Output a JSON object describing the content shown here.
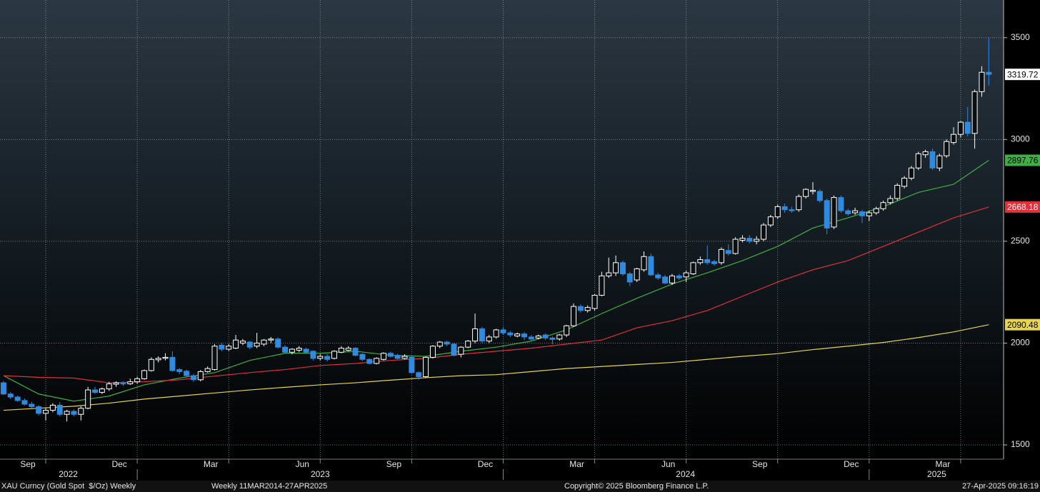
{
  "chart_data": {
    "type": "candlestick",
    "title": "XAU Curncy (Gold Spot  $/Oz) Weekly",
    "subtitle": "Weekly 11MAR2014-27APR2025",
    "copyright": "Copyright© 2025 Bloomberg Finance L.P.",
    "timestamp": "27-Apr-2025 09:16:19",
    "up_color": "#ffffff",
    "down_color": "#2f8ae0",
    "grid": true,
    "xlim": [
      -0.5,
      142.1
    ],
    "ylim": [
      1430,
      3685
    ],
    "yticks": [
      1500,
      2000,
      2500,
      3000,
      3500
    ],
    "xticks": [
      {
        "value": 6,
        "label": "Sep"
      },
      {
        "value": 19,
        "label": "Dec"
      },
      {
        "value": 32,
        "label": "Mar"
      },
      {
        "value": 45,
        "label": "Jun"
      },
      {
        "value": 58,
        "label": "Sep"
      },
      {
        "value": 71,
        "label": "Dec"
      },
      {
        "value": 84,
        "label": "Mar"
      },
      {
        "value": 97,
        "label": "Jun"
      },
      {
        "value": 110,
        "label": "Sep"
      },
      {
        "value": 123,
        "label": "Dec"
      },
      {
        "value": 136,
        "label": "Mar"
      }
    ],
    "year_labels": [
      {
        "value": 9.2,
        "label": "2022"
      },
      {
        "value": 45,
        "label": "2023"
      },
      {
        "value": 96.9,
        "label": "2024"
      },
      {
        "value": 132.6,
        "label": "2025"
      }
    ],
    "year_dividers": [
      19,
      71,
      123
    ],
    "ohlc": [
      [
        1805,
        1815,
        1745,
        1750
      ],
      [
        1750,
        1760,
        1725,
        1735
      ],
      [
        1735,
        1742,
        1712,
        1718
      ],
      [
        1718,
        1728,
        1695,
        1700
      ],
      [
        1700,
        1712,
        1680,
        1688
      ],
      [
        1688,
        1695,
        1645,
        1655
      ],
      [
        1655,
        1680,
        1620,
        1670
      ],
      [
        1670,
        1705,
        1660,
        1695
      ],
      [
        1695,
        1710,
        1640,
        1650
      ],
      [
        1650,
        1672,
        1615,
        1665
      ],
      [
        1665,
        1675,
        1640,
        1650
      ],
      [
        1650,
        1690,
        1620,
        1680
      ],
      [
        1680,
        1785,
        1675,
        1770
      ],
      [
        1770,
        1785,
        1750,
        1758
      ],
      [
        1758,
        1782,
        1750,
        1775
      ],
      [
        1775,
        1810,
        1765,
        1800
      ],
      [
        1798,
        1812,
        1785,
        1805
      ],
      [
        1803,
        1812,
        1790,
        1800
      ],
      [
        1800,
        1825,
        1795,
        1810
      ],
      [
        1810,
        1835,
        1800,
        1825
      ],
      [
        1825,
        1870,
        1820,
        1865
      ],
      [
        1865,
        1930,
        1860,
        1920
      ],
      [
        1918,
        1935,
        1905,
        1925
      ],
      [
        1925,
        1950,
        1915,
        1930
      ],
      [
        1930,
        1960,
        1860,
        1865
      ],
      [
        1870,
        1878,
        1848,
        1860
      ],
      [
        1862,
        1870,
        1835,
        1840
      ],
      [
        1840,
        1848,
        1810,
        1820
      ],
      [
        1820,
        1868,
        1812,
        1860
      ],
      [
        1860,
        1885,
        1855,
        1875
      ],
      [
        1870,
        1995,
        1865,
        1985
      ],
      [
        1990,
        2000,
        1960,
        1970
      ],
      [
        1970,
        1995,
        1962,
        1985
      ],
      [
        1975,
        2040,
        1970,
        2015
      ],
      [
        2000,
        2020,
        1990,
        2010
      ],
      [
        2005,
        2010,
        1970,
        1980
      ],
      [
        1985,
        2050,
        1975,
        2000
      ],
      [
        1995,
        2020,
        1985,
        2015
      ],
      [
        2015,
        2030,
        2000,
        2020
      ],
      [
        2020,
        2028,
        1975,
        1980
      ],
      [
        1980,
        1990,
        1950,
        1955
      ],
      [
        1955,
        1975,
        1945,
        1970
      ],
      [
        1965,
        1985,
        1955,
        1975
      ],
      [
        1970,
        1978,
        1950,
        1955
      ],
      [
        1960,
        1965,
        1915,
        1925
      ],
      [
        1925,
        1945,
        1915,
        1935
      ],
      [
        1935,
        1945,
        1910,
        1920
      ],
      [
        1925,
        1965,
        1920,
        1960
      ],
      [
        1955,
        1985,
        1950,
        1975
      ],
      [
        1965,
        1985,
        1960,
        1975
      ],
      [
        1975,
        1980,
        1935,
        1940
      ],
      [
        1945,
        1950,
        1912,
        1920
      ],
      [
        1920,
        1925,
        1895,
        1900
      ],
      [
        1900,
        1930,
        1895,
        1925
      ],
      [
        1920,
        1955,
        1915,
        1950
      ],
      [
        1950,
        1958,
        1930,
        1935
      ],
      [
        1940,
        1948,
        1920,
        1925
      ],
      [
        1925,
        1945,
        1920,
        1935
      ],
      [
        1930,
        1938,
        1850,
        1855
      ],
      [
        1855,
        1862,
        1820,
        1835
      ],
      [
        1835,
        1935,
        1830,
        1930
      ],
      [
        1930,
        1990,
        1925,
        1985
      ],
      [
        1985,
        2010,
        1975,
        2005
      ],
      [
        2005,
        2012,
        1985,
        1995
      ],
      [
        1995,
        2000,
        1935,
        1940
      ],
      [
        1945,
        1985,
        1930,
        1980
      ],
      [
        1980,
        2015,
        1975,
        2010
      ],
      [
        2010,
        2145,
        2000,
        2070
      ],
      [
        2070,
        2080,
        2000,
        2010
      ],
      [
        2010,
        2040,
        2000,
        2030
      ],
      [
        2030,
        2070,
        2022,
        2065
      ],
      [
        2065,
        2078,
        2040,
        2050
      ],
      [
        2050,
        2060,
        2030,
        2040
      ],
      [
        2035,
        2052,
        2028,
        2045
      ],
      [
        2045,
        2055,
        2015,
        2030
      ],
      [
        2030,
        2040,
        2010,
        2020
      ],
      [
        2025,
        2042,
        2018,
        2035
      ],
      [
        2040,
        2048,
        2015,
        2025
      ],
      [
        2025,
        2032,
        1995,
        2018
      ],
      [
        2020,
        2045,
        2012,
        2040
      ],
      [
        2040,
        2090,
        2030,
        2085
      ],
      [
        2085,
        2195,
        2080,
        2180
      ],
      [
        2180,
        2190,
        2150,
        2160
      ],
      [
        2160,
        2185,
        2150,
        2175
      ],
      [
        2170,
        2240,
        2160,
        2235
      ],
      [
        2235,
        2350,
        2230,
        2330
      ],
      [
        2330,
        2420,
        2320,
        2345
      ],
      [
        2345,
        2430,
        2330,
        2395
      ],
      [
        2395,
        2405,
        2330,
        2340
      ],
      [
        2340,
        2350,
        2280,
        2300
      ],
      [
        2310,
        2370,
        2300,
        2365
      ],
      [
        2360,
        2450,
        2350,
        2425
      ],
      [
        2425,
        2440,
        2330,
        2335
      ],
      [
        2335,
        2345,
        2310,
        2320
      ],
      [
        2325,
        2335,
        2290,
        2295
      ],
      [
        2295,
        2340,
        2285,
        2330
      ],
      [
        2330,
        2340,
        2310,
        2320
      ],
      [
        2325,
        2355,
        2300,
        2345
      ],
      [
        2340,
        2400,
        2335,
        2395
      ],
      [
        2395,
        2425,
        2385,
        2410
      ],
      [
        2410,
        2480,
        2385,
        2395
      ],
      [
        2400,
        2410,
        2380,
        2390
      ],
      [
        2395,
        2470,
        2385,
        2460
      ],
      [
        2455,
        2485,
        2430,
        2440
      ],
      [
        2440,
        2520,
        2435,
        2510
      ],
      [
        2505,
        2530,
        2495,
        2515
      ],
      [
        2515,
        2530,
        2490,
        2500
      ],
      [
        2500,
        2525,
        2485,
        2510
      ],
      [
        2510,
        2590,
        2500,
        2580
      ],
      [
        2580,
        2630,
        2570,
        2620
      ],
      [
        2620,
        2680,
        2610,
        2670
      ],
      [
        2670,
        2685,
        2640,
        2655
      ],
      [
        2655,
        2670,
        2640,
        2650
      ],
      [
        2655,
        2730,
        2645,
        2720
      ],
      [
        2720,
        2760,
        2710,
        2755
      ],
      [
        2745,
        2790,
        2730,
        2750
      ],
      [
        2745,
        2755,
        2690,
        2700
      ],
      [
        2700,
        2710,
        2535,
        2565
      ],
      [
        2570,
        2725,
        2560,
        2715
      ],
      [
        2715,
        2725,
        2640,
        2650
      ],
      [
        2650,
        2660,
        2625,
        2635
      ],
      [
        2640,
        2665,
        2630,
        2650
      ],
      [
        2645,
        2655,
        2590,
        2625
      ],
      [
        2625,
        2650,
        2600,
        2640
      ],
      [
        2640,
        2670,
        2630,
        2660
      ],
      [
        2660,
        2700,
        2650,
        2690
      ],
      [
        2690,
        2725,
        2680,
        2710
      ],
      [
        2710,
        2785,
        2700,
        2775
      ],
      [
        2770,
        2820,
        2760,
        2810
      ],
      [
        2810,
        2870,
        2800,
        2860
      ],
      [
        2860,
        2940,
        2850,
        2930
      ],
      [
        2925,
        2950,
        2910,
        2940
      ],
      [
        2940,
        2955,
        2850,
        2860
      ],
      [
        2860,
        2930,
        2845,
        2920
      ],
      [
        2920,
        3000,
        2910,
        2990
      ],
      [
        2985,
        3060,
        2975,
        3025
      ],
      [
        3025,
        3090,
        3010,
        3085
      ],
      [
        3085,
        3160,
        3015,
        3030
      ],
      [
        3030,
        3245,
        2955,
        3235
      ],
      [
        3235,
        3360,
        3210,
        3330
      ],
      [
        3330,
        3500,
        3265,
        3319.72
      ]
    ],
    "ma_x": [
      0,
      5,
      10,
      15,
      20,
      25,
      30,
      35,
      40,
      45,
      50,
      55,
      60,
      65,
      70,
      75,
      80,
      85,
      90,
      95,
      100,
      105,
      110,
      115,
      120,
      125,
      130,
      135,
      140
    ],
    "series": [
      {
        "color": "#3cb043",
        "values": [
          1840,
          1750,
          1715,
          1740,
          1795,
          1828,
          1855,
          1915,
          1950,
          1950,
          1960,
          1940,
          1935,
          1960,
          1980,
          2010,
          2065,
          2145,
          2220,
          2290,
          2345,
          2405,
          2475,
          2565,
          2615,
          2670,
          2740,
          2780,
          2897.76
        ]
      },
      {
        "color": "#e0303a",
        "values": [
          1840,
          1832,
          1828,
          1805,
          1810,
          1820,
          1838,
          1855,
          1870,
          1890,
          1900,
          1915,
          1925,
          1945,
          1960,
          1975,
          1995,
          2015,
          2075,
          2110,
          2160,
          2230,
          2300,
          2360,
          2405,
          2475,
          2545,
          2615,
          2668.18
        ]
      },
      {
        "color": "#e8d44d",
        "values": [
          1670,
          1680,
          1690,
          1705,
          1725,
          1740,
          1755,
          1770,
          1783,
          1795,
          1805,
          1818,
          1830,
          1840,
          1845,
          1860,
          1875,
          1885,
          1895,
          1905,
          1920,
          1935,
          1948,
          1968,
          1985,
          2003,
          2027,
          2055,
          2090.48
        ]
      }
    ]
  }
}
